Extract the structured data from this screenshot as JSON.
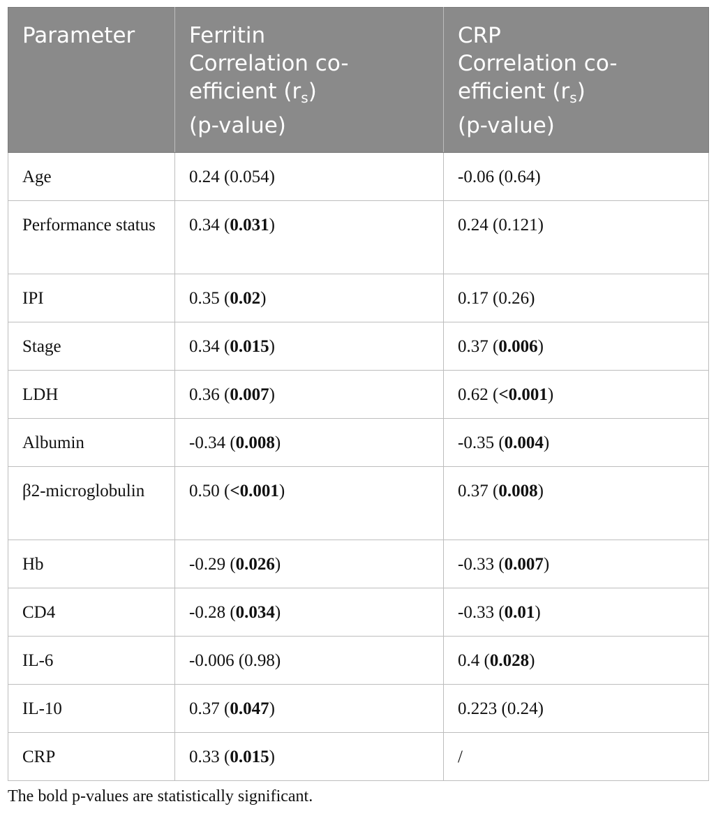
{
  "table": {
    "headers": [
      {
        "lines": [
          "Parameter"
        ]
      },
      {
        "lines": [
          "Ferritin",
          "Correlation co-",
          "efficient (r",
          "s",
          ")",
          "(p-value)"
        ]
      },
      {
        "lines": [
          "CRP",
          "Correlation co-",
          "efficient (r",
          "s",
          ")",
          "(p-value)"
        ]
      }
    ],
    "rows": [
      {
        "param": "Age",
        "ferritin_r": "0.24",
        "ferritin_p": "0.054",
        "ferritin_bold": false,
        "crp_r": "-0.06",
        "crp_p": "0.64",
        "crp_bold": false
      },
      {
        "param": "Performance status",
        "ferritin_r": "0.34",
        "ferritin_p": "0.031",
        "ferritin_bold": true,
        "crp_r": "0.24",
        "crp_p": "0.121",
        "crp_bold": false
      },
      {
        "param": "IPI",
        "ferritin_r": "0.35",
        "ferritin_p": "0.02",
        "ferritin_bold": true,
        "crp_r": "0.17",
        "crp_p": "0.26",
        "crp_bold": false
      },
      {
        "param": "Stage",
        "ferritin_r": "0.34",
        "ferritin_p": "0.015",
        "ferritin_bold": true,
        "crp_r": "0.37",
        "crp_p": "0.006",
        "crp_bold": true
      },
      {
        "param": "LDH",
        "ferritin_r": "0.36",
        "ferritin_p": "0.007",
        "ferritin_bold": true,
        "crp_r": "0.62",
        "crp_p": "<0.001",
        "crp_bold": true
      },
      {
        "param": "Albumin",
        "ferritin_r": "-0.34",
        "ferritin_p": "0.008",
        "ferritin_bold": true,
        "crp_r": "-0.35",
        "crp_p": "0.004",
        "crp_bold": true
      },
      {
        "param": "β2-microglobulin",
        "ferritin_r": "0.50",
        "ferritin_p": "<0.001",
        "ferritin_bold": true,
        "crp_r": "0.37",
        "crp_p": "0.008",
        "crp_bold": true
      },
      {
        "param": "Hb",
        "ferritin_r": "-0.29",
        "ferritin_p": "0.026",
        "ferritin_bold": true,
        "crp_r": "-0.33",
        "crp_p": "0.007",
        "crp_bold": true
      },
      {
        "param": "CD4",
        "ferritin_r": "-0.28",
        "ferritin_p": "0.034",
        "ferritin_bold": true,
        "crp_r": "-0.33",
        "crp_p": "0.01",
        "crp_bold": true
      },
      {
        "param": "IL-6",
        "ferritin_r": "-0.006",
        "ferritin_p": "0.98",
        "ferritin_bold": false,
        "crp_r": "0.4",
        "crp_p": "0.028",
        "crp_bold": true
      },
      {
        "param": "IL-10",
        "ferritin_r": "0.37",
        "ferritin_p": "0.047",
        "ferritin_bold": true,
        "crp_r": "0.223",
        "crp_p": "0.24",
        "crp_bold": false
      },
      {
        "param": "CRP",
        "ferritin_r": "0.33",
        "ferritin_p": "0.015",
        "ferritin_bold": true,
        "crp_r": "/",
        "crp_p": "",
        "crp_bold": false
      }
    ]
  },
  "footnote": "The bold p-values are statistically significant.",
  "colors": {
    "header_bg": "#8a8a8a",
    "header_text": "#ffffff",
    "border": "#bdbdbd"
  }
}
